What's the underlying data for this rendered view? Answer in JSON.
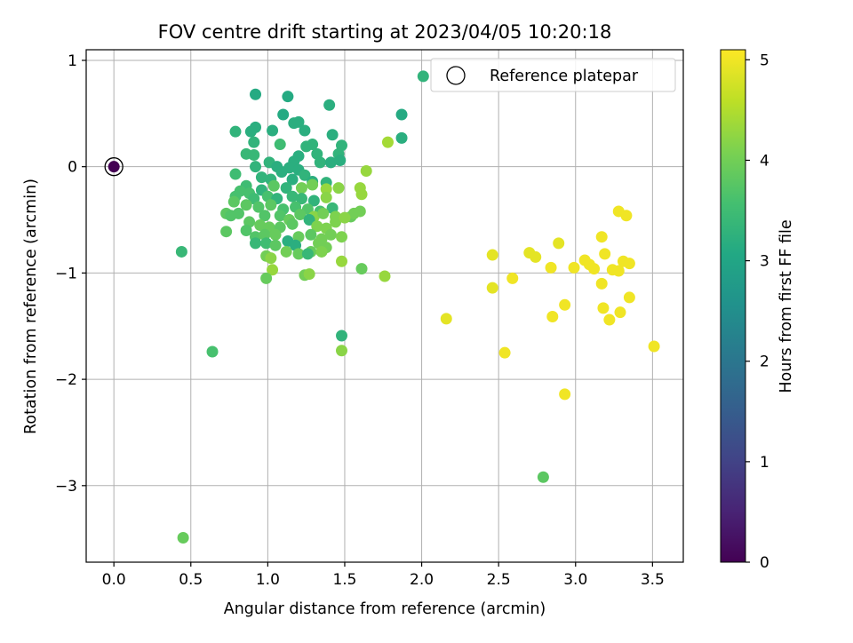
{
  "chart_data": {
    "type": "scatter",
    "title": "FOV centre drift starting at 2023/04/05 10:20:18",
    "xlabel": "Angular distance from reference (arcmin)",
    "ylabel": "Rotation from reference (arcmin)",
    "xlim": [
      -0.18,
      3.7
    ],
    "ylim": [
      -3.72,
      1.1
    ],
    "xticks": [
      0.0,
      0.5,
      1.0,
      1.5,
      2.0,
      2.5,
      3.0,
      3.5
    ],
    "xtick_labels": [
      "0.0",
      "0.5",
      "1.0",
      "1.5",
      "2.0",
      "2.5",
      "3.0",
      "3.5"
    ],
    "yticks": [
      -3,
      -2,
      -1,
      0,
      1
    ],
    "ytick_labels": [
      "−3",
      "−2",
      "−1",
      "0",
      "1"
    ],
    "grid": true,
    "legend": {
      "placement": "top-right",
      "entries": [
        "Reference platepar"
      ]
    },
    "colorbar": {
      "label": "Hours from first FF file",
      "colormap": "viridis",
      "range": [
        0,
        5.1
      ],
      "ticks": [
        0,
        1,
        2,
        3,
        4,
        5
      ],
      "tick_labels": [
        "0",
        "1",
        "2",
        "3",
        "4",
        "5"
      ]
    },
    "reference_point": {
      "x": 0.0,
      "y": 0.0,
      "c": 0.0
    },
    "series": [
      {
        "points": [
          {
            "x": 0.92,
            "y": 0.68,
            "c": 3.1
          },
          {
            "x": 1.13,
            "y": 0.66,
            "c": 3.1
          },
          {
            "x": 1.4,
            "y": 0.58,
            "c": 3.2
          },
          {
            "x": 1.1,
            "y": 0.49,
            "c": 3.1
          },
          {
            "x": 2.01,
            "y": 0.85,
            "c": 3.3
          },
          {
            "x": 1.87,
            "y": 0.49,
            "c": 3.1
          },
          {
            "x": 1.87,
            "y": 0.27,
            "c": 3.2
          },
          {
            "x": 0.92,
            "y": 0.37,
            "c": 3.2
          },
          {
            "x": 0.89,
            "y": 0.33,
            "c": 3.2
          },
          {
            "x": 0.79,
            "y": 0.33,
            "c": 3.3
          },
          {
            "x": 1.03,
            "y": 0.34,
            "c": 3.2
          },
          {
            "x": 1.17,
            "y": 0.41,
            "c": 3.2
          },
          {
            "x": 1.2,
            "y": 0.42,
            "c": 3.2
          },
          {
            "x": 1.24,
            "y": 0.34,
            "c": 3.2
          },
          {
            "x": 1.42,
            "y": 0.3,
            "c": 3.2
          },
          {
            "x": 1.48,
            "y": 0.2,
            "c": 3.3
          },
          {
            "x": 0.91,
            "y": 0.23,
            "c": 3.3
          },
          {
            "x": 1.08,
            "y": 0.21,
            "c": 3.5
          },
          {
            "x": 1.29,
            "y": 0.21,
            "c": 3.3
          },
          {
            "x": 1.25,
            "y": 0.19,
            "c": 3.3
          },
          {
            "x": 1.46,
            "y": 0.12,
            "c": 3.3
          },
          {
            "x": 1.32,
            "y": 0.12,
            "c": 3.3
          },
          {
            "x": 1.2,
            "y": 0.1,
            "c": 3.2
          },
          {
            "x": 0.86,
            "y": 0.12,
            "c": 3.4
          },
          {
            "x": 0.91,
            "y": 0.11,
            "c": 3.4
          },
          {
            "x": 1.17,
            "y": 0.05,
            "c": 3.2
          },
          {
            "x": 1.34,
            "y": 0.04,
            "c": 3.3
          },
          {
            "x": 1.41,
            "y": 0.04,
            "c": 3.2
          },
          {
            "x": 1.47,
            "y": 0.06,
            "c": 3.2
          },
          {
            "x": 1.01,
            "y": 0.04,
            "c": 3.3
          },
          {
            "x": 1.06,
            "y": 0.0,
            "c": 3.2
          },
          {
            "x": 1.14,
            "y": -0.01,
            "c": 3.2
          },
          {
            "x": 1.2,
            "y": -0.03,
            "c": 3.2
          },
          {
            "x": 1.09,
            "y": -0.05,
            "c": 3.2
          },
          {
            "x": 0.92,
            "y": 0.0,
            "c": 3.3
          },
          {
            "x": 0.79,
            "y": -0.07,
            "c": 3.5
          },
          {
            "x": 0.96,
            "y": -0.1,
            "c": 3.3
          },
          {
            "x": 1.02,
            "y": -0.12,
            "c": 3.3
          },
          {
            "x": 1.16,
            "y": -0.12,
            "c": 3.2
          },
          {
            "x": 1.24,
            "y": -0.08,
            "c": 3.3
          },
          {
            "x": 1.29,
            "y": -0.14,
            "c": 3.2
          },
          {
            "x": 1.38,
            "y": -0.15,
            "c": 3.3
          },
          {
            "x": 1.64,
            "y": -0.04,
            "c": 4.3
          },
          {
            "x": 1.78,
            "y": 0.23,
            "c": 4.4
          },
          {
            "x": 0.86,
            "y": -0.18,
            "c": 3.5
          },
          {
            "x": 0.82,
            "y": -0.23,
            "c": 3.6
          },
          {
            "x": 0.88,
            "y": -0.25,
            "c": 3.6
          },
          {
            "x": 0.96,
            "y": -0.22,
            "c": 3.3
          },
          {
            "x": 1.04,
            "y": -0.18,
            "c": 3.8
          },
          {
            "x": 1.12,
            "y": -0.2,
            "c": 3.3
          },
          {
            "x": 1.22,
            "y": -0.2,
            "c": 4.0
          },
          {
            "x": 1.29,
            "y": -0.17,
            "c": 4.0
          },
          {
            "x": 1.38,
            "y": -0.21,
            "c": 4.3
          },
          {
            "x": 1.46,
            "y": -0.2,
            "c": 4.2
          },
          {
            "x": 1.6,
            "y": -0.2,
            "c": 4.3
          },
          {
            "x": 1.61,
            "y": -0.26,
            "c": 4.3
          },
          {
            "x": 0.79,
            "y": -0.28,
            "c": 3.6
          },
          {
            "x": 0.91,
            "y": -0.3,
            "c": 3.5
          },
          {
            "x": 1.0,
            "y": -0.28,
            "c": 3.6
          },
          {
            "x": 1.06,
            "y": -0.3,
            "c": 3.3
          },
          {
            "x": 1.16,
            "y": -0.28,
            "c": 3.4
          },
          {
            "x": 1.22,
            "y": -0.3,
            "c": 3.4
          },
          {
            "x": 1.3,
            "y": -0.32,
            "c": 3.3
          },
          {
            "x": 1.38,
            "y": -0.29,
            "c": 4.2
          },
          {
            "x": 0.78,
            "y": -0.33,
            "c": 3.8
          },
          {
            "x": 0.86,
            "y": -0.36,
            "c": 3.8
          },
          {
            "x": 0.94,
            "y": -0.38,
            "c": 3.7
          },
          {
            "x": 1.02,
            "y": -0.36,
            "c": 3.8
          },
          {
            "x": 1.1,
            "y": -0.4,
            "c": 3.6
          },
          {
            "x": 1.18,
            "y": -0.38,
            "c": 3.6
          },
          {
            "x": 1.26,
            "y": -0.4,
            "c": 3.7
          },
          {
            "x": 1.34,
            "y": -0.42,
            "c": 3.6
          },
          {
            "x": 1.42,
            "y": -0.39,
            "c": 3.4
          },
          {
            "x": 0.73,
            "y": -0.44,
            "c": 3.8
          },
          {
            "x": 0.76,
            "y": -0.46,
            "c": 3.7
          },
          {
            "x": 0.81,
            "y": -0.44,
            "c": 3.7
          },
          {
            "x": 0.98,
            "y": -0.46,
            "c": 3.7
          },
          {
            "x": 1.08,
            "y": -0.46,
            "c": 3.7
          },
          {
            "x": 1.14,
            "y": -0.5,
            "c": 3.9
          },
          {
            "x": 1.21,
            "y": -0.45,
            "c": 3.8
          },
          {
            "x": 1.3,
            "y": -0.47,
            "c": 4.2
          },
          {
            "x": 1.36,
            "y": -0.44,
            "c": 4.0
          },
          {
            "x": 1.44,
            "y": -0.47,
            "c": 4.1
          },
          {
            "x": 1.54,
            "y": -0.47,
            "c": 3.9
          },
          {
            "x": 1.6,
            "y": -0.42,
            "c": 4.0
          },
          {
            "x": 1.56,
            "y": -0.44,
            "c": 4.0
          },
          {
            "x": 0.73,
            "y": -0.61,
            "c": 3.8
          },
          {
            "x": 0.88,
            "y": -0.52,
            "c": 3.8
          },
          {
            "x": 0.95,
            "y": -0.55,
            "c": 3.9
          },
          {
            "x": 1.01,
            "y": -0.57,
            "c": 3.9
          },
          {
            "x": 1.08,
            "y": -0.57,
            "c": 3.8
          },
          {
            "x": 1.16,
            "y": -0.54,
            "c": 3.8
          },
          {
            "x": 1.27,
            "y": -0.5,
            "c": 3.3
          },
          {
            "x": 1.32,
            "y": -0.56,
            "c": 4.1
          },
          {
            "x": 1.38,
            "y": -0.58,
            "c": 4.1
          },
          {
            "x": 1.44,
            "y": -0.52,
            "c": 4.1
          },
          {
            "x": 1.5,
            "y": -0.48,
            "c": 4.2
          },
          {
            "x": 0.86,
            "y": -0.6,
            "c": 3.7
          },
          {
            "x": 0.92,
            "y": -0.66,
            "c": 3.7
          },
          {
            "x": 0.98,
            "y": -0.64,
            "c": 3.8
          },
          {
            "x": 1.05,
            "y": -0.64,
            "c": 3.9
          },
          {
            "x": 1.13,
            "y": -0.7,
            "c": 3.2
          },
          {
            "x": 1.2,
            "y": -0.66,
            "c": 3.9
          },
          {
            "x": 1.28,
            "y": -0.64,
            "c": 3.8
          },
          {
            "x": 1.35,
            "y": -0.68,
            "c": 4.0
          },
          {
            "x": 1.41,
            "y": -0.64,
            "c": 4.0
          },
          {
            "x": 1.48,
            "y": -0.66,
            "c": 4.1
          },
          {
            "x": 0.92,
            "y": -0.72,
            "c": 3.4
          },
          {
            "x": 0.99,
            "y": -0.72,
            "c": 3.5
          },
          {
            "x": 1.05,
            "y": -0.74,
            "c": 3.8
          },
          {
            "x": 1.18,
            "y": -0.74,
            "c": 3.2
          },
          {
            "x": 1.33,
            "y": -0.72,
            "c": 4.0
          },
          {
            "x": 1.38,
            "y": -0.76,
            "c": 4.0
          },
          {
            "x": 1.28,
            "y": -0.8,
            "c": 3.9
          },
          {
            "x": 1.2,
            "y": -0.82,
            "c": 3.9
          },
          {
            "x": 1.12,
            "y": -0.8,
            "c": 4.0
          },
          {
            "x": 1.35,
            "y": -0.8,
            "c": 4.1
          },
          {
            "x": 0.99,
            "y": -0.84,
            "c": 4.0
          },
          {
            "x": 1.02,
            "y": -0.86,
            "c": 4.2
          },
          {
            "x": 1.26,
            "y": -0.82,
            "c": 3.4
          },
          {
            "x": 1.48,
            "y": -0.89,
            "c": 4.3
          },
          {
            "x": 1.61,
            "y": -0.96,
            "c": 3.9
          },
          {
            "x": 1.76,
            "y": -1.03,
            "c": 4.3
          },
          {
            "x": 1.03,
            "y": -0.97,
            "c": 4.3
          },
          {
            "x": 1.24,
            "y": -1.02,
            "c": 4.0
          },
          {
            "x": 1.27,
            "y": -1.01,
            "c": 4.2
          },
          {
            "x": 0.99,
            "y": -1.05,
            "c": 3.9
          },
          {
            "x": 0.44,
            "y": -0.8,
            "c": 3.4
          },
          {
            "x": 1.48,
            "y": -1.59,
            "c": 3.3
          },
          {
            "x": 1.48,
            "y": -1.73,
            "c": 4.2
          },
          {
            "x": 0.64,
            "y": -1.74,
            "c": 3.6
          },
          {
            "x": 0.45,
            "y": -3.49,
            "c": 3.9
          },
          {
            "x": 2.79,
            "y": -2.92,
            "c": 3.8
          },
          {
            "x": 2.16,
            "y": -1.43,
            "c": 4.9
          },
          {
            "x": 2.46,
            "y": -0.83,
            "c": 4.9
          },
          {
            "x": 2.46,
            "y": -1.14,
            "c": 4.9
          },
          {
            "x": 2.54,
            "y": -1.75,
            "c": 5.0
          },
          {
            "x": 2.59,
            "y": -1.05,
            "c": 5.0
          },
          {
            "x": 2.7,
            "y": -0.81,
            "c": 4.9
          },
          {
            "x": 2.74,
            "y": -0.85,
            "c": 4.9
          },
          {
            "x": 2.84,
            "y": -0.95,
            "c": 5.0
          },
          {
            "x": 2.85,
            "y": -1.41,
            "c": 5.0
          },
          {
            "x": 2.89,
            "y": -0.72,
            "c": 4.9
          },
          {
            "x": 2.93,
            "y": -1.3,
            "c": 5.0
          },
          {
            "x": 2.93,
            "y": -2.14,
            "c": 5.0
          },
          {
            "x": 2.99,
            "y": -0.95,
            "c": 5.0
          },
          {
            "x": 3.06,
            "y": -0.88,
            "c": 5.0
          },
          {
            "x": 3.09,
            "y": -0.92,
            "c": 5.0
          },
          {
            "x": 3.12,
            "y": -0.96,
            "c": 5.0
          },
          {
            "x": 3.17,
            "y": -0.66,
            "c": 5.0
          },
          {
            "x": 3.17,
            "y": -1.1,
            "c": 5.0
          },
          {
            "x": 3.18,
            "y": -1.33,
            "c": 5.0
          },
          {
            "x": 3.19,
            "y": -0.82,
            "c": 5.0
          },
          {
            "x": 3.22,
            "y": -1.44,
            "c": 5.0
          },
          {
            "x": 3.24,
            "y": -0.97,
            "c": 5.0
          },
          {
            "x": 3.28,
            "y": -0.42,
            "c": 5.0
          },
          {
            "x": 3.28,
            "y": -0.98,
            "c": 5.0
          },
          {
            "x": 3.29,
            "y": -1.37,
            "c": 5.0
          },
          {
            "x": 3.31,
            "y": -0.89,
            "c": 5.0
          },
          {
            "x": 3.33,
            "y": -0.46,
            "c": 5.0
          },
          {
            "x": 3.35,
            "y": -0.91,
            "c": 5.0
          },
          {
            "x": 3.35,
            "y": -1.23,
            "c": 5.0
          },
          {
            "x": 3.51,
            "y": -1.69,
            "c": 5.0
          }
        ]
      }
    ]
  }
}
